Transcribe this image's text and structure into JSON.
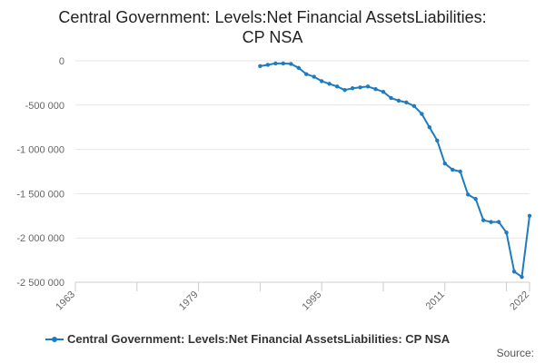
{
  "chart_data": {
    "type": "line",
    "title_line1": "Central Government: Levels:Net Financial AssetsLiabilities:",
    "title_line2": "CP NSA",
    "xlim": [
      1963,
      2022
    ],
    "ylim": [
      -2500000,
      0
    ],
    "y_ticks": [
      0,
      -500000,
      -1000000,
      -1500000,
      -2000000,
      -2500000
    ],
    "y_tick_labels": [
      "0",
      "-500 000",
      "-1 000 000",
      "-1 500 000",
      "-2 000 000",
      "-2 500 000"
    ],
    "x_ticks": [
      1963,
      1979,
      1995,
      2011,
      2022
    ],
    "x_tick_labels": [
      "1963",
      "1979",
      "1995",
      "2011",
      "2022"
    ],
    "series": [
      {
        "name": "Central Government: Levels:Net Financial AssetsLiabilities: CP NSA",
        "color": "#1f7bbf",
        "x": [
          1987,
          1988,
          1989,
          1990,
          1991,
          1992,
          1993,
          1994,
          1995,
          1996,
          1997,
          1998,
          1999,
          2000,
          2001,
          2002,
          2003,
          2004,
          2005,
          2006,
          2007,
          2008,
          2009,
          2010,
          2011,
          2012,
          2013,
          2014,
          2015,
          2016,
          2017,
          2018,
          2019,
          2020,
          2021,
          2022
        ],
        "values": [
          -60000,
          -45000,
          -30000,
          -30000,
          -35000,
          -80000,
          -150000,
          -180000,
          -230000,
          -260000,
          -290000,
          -330000,
          -310000,
          -300000,
          -290000,
          -320000,
          -350000,
          -420000,
          -450000,
          -470000,
          -510000,
          -600000,
          -750000,
          -900000,
          -1160000,
          -1230000,
          -1250000,
          -1510000,
          -1560000,
          -1800000,
          -1820000,
          -1820000,
          -1940000,
          -2380000,
          -2440000,
          -1750000
        ]
      }
    ],
    "legend_label": "Central Government: Levels:Net Financial AssetsLiabilities: CP NSA",
    "grid": true
  },
  "footer": {
    "source_label": "Source:"
  }
}
